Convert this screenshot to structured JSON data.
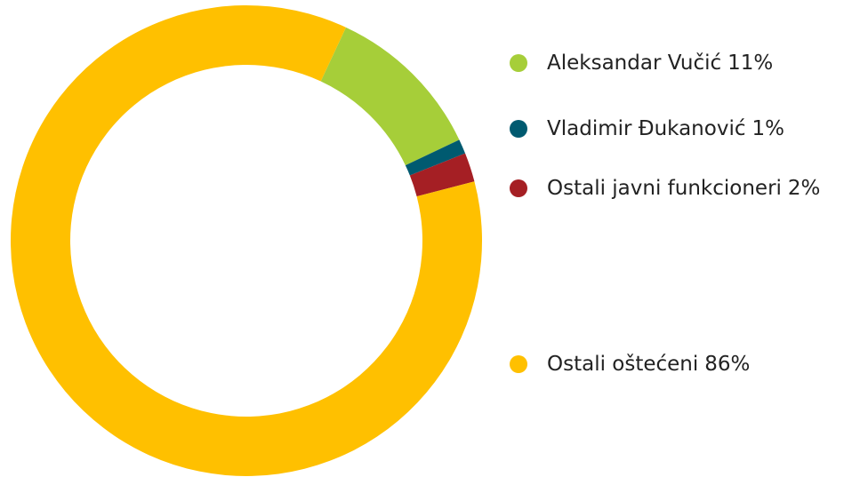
{
  "chart_data": {
    "type": "pie",
    "donut": true,
    "categories": [
      "Aleksandar Vučić",
      "Vladimir Đukanović",
      "Ostali javni funkcioneri",
      "Ostali oštećeni"
    ],
    "values": [
      11,
      1,
      2,
      86
    ],
    "value_labels": [
      "11%",
      "1%",
      "2%",
      "86%"
    ],
    "colors": [
      "#a6ce39",
      "#005a70",
      "#a51f24",
      "#ffc000"
    ],
    "legend": "right"
  }
}
